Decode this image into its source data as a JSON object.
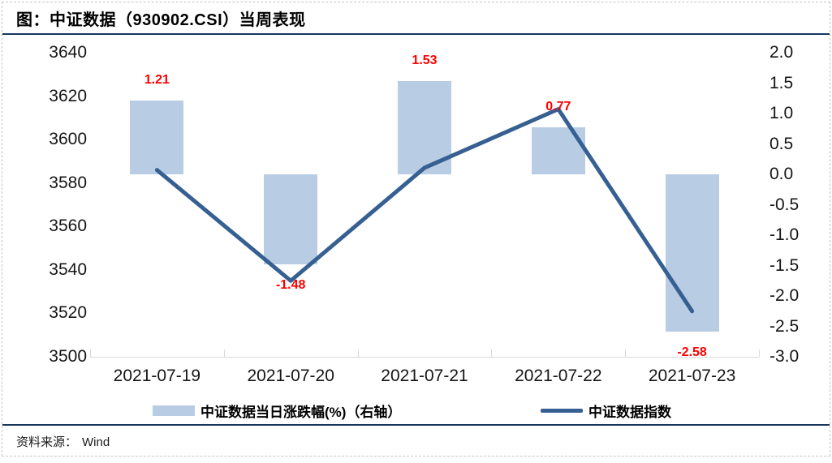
{
  "title": "图：中证数据（930902.CSI）当周表现",
  "source": {
    "label": "资料来源：",
    "value": "Wind"
  },
  "colors": {
    "bar": "#b8cce4",
    "line": "#376092",
    "value_label": "#ff0000",
    "rule": "#17365d",
    "axis": "#d9d9d9"
  },
  "chart_data": {
    "type": "combo",
    "title": "图：中证数据（930902.CSI）当周表现",
    "categories": [
      "2021-07-19",
      "2021-07-20",
      "2021-07-21",
      "2021-07-22",
      "2021-07-23"
    ],
    "series": [
      {
        "name": "中证数据当日涨跌幅(%)（右轴）",
        "type": "bar",
        "axis": "right",
        "values": [
          1.21,
          -1.48,
          1.53,
          0.77,
          -2.58
        ],
        "color": "#b8cce4"
      },
      {
        "name": "中证数据指数",
        "type": "line",
        "axis": "left",
        "values": [
          3586,
          3535,
          3587,
          3614,
          3521
        ],
        "color": "#376092"
      }
    ],
    "left_axis": {
      "min": 3500,
      "max": 3640,
      "step": 20,
      "ticks": [
        "3640",
        "3620",
        "3600",
        "3580",
        "3560",
        "3540",
        "3520",
        "3500"
      ]
    },
    "right_axis": {
      "min": -3.0,
      "max": 2.0,
      "step": 0.5,
      "ticks": [
        "2.0",
        "1.5",
        "1.0",
        "0.5",
        "0.0",
        "-0.5",
        "-1.0",
        "-1.5",
        "-2.0",
        "-2.5",
        "-3.0"
      ]
    },
    "grid": false,
    "legend_position": "bottom"
  }
}
